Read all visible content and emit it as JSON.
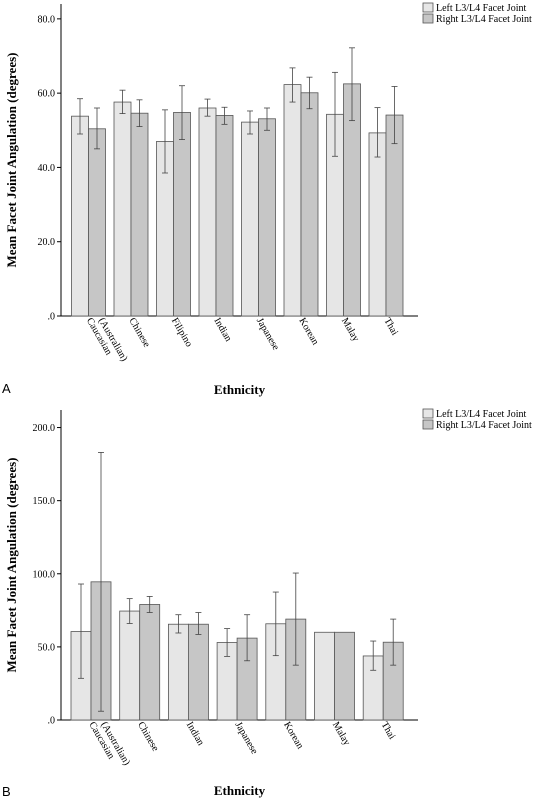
{
  "chart_data": [
    {
      "type": "bar",
      "panel_label": "A",
      "xlabel": "Ethnicity",
      "ylabel": "Mean Facet Joint Angulation (degrees)",
      "ylim": [
        0,
        84
      ],
      "yticks": [
        0,
        20,
        40,
        60,
        80
      ],
      "ytick_labels": [
        ".0",
        "20.0",
        "40.0",
        "60.0",
        "80.0"
      ],
      "grid": false,
      "legend_position": "top-right",
      "categories": [
        [
          "Caucasian",
          "(Australian)"
        ],
        [
          "Chinese"
        ],
        [
          "Filipino"
        ],
        [
          "Indian"
        ],
        [
          "Japanese"
        ],
        [
          "Korean"
        ],
        [
          "Malay"
        ],
        [
          "Thai"
        ]
      ],
      "series": [
        {
          "name": "Left L3/L4 Facet Joint",
          "color": "#e6e6e6",
          "values": [
            53.8,
            57.6,
            47.0,
            56.0,
            52.2,
            62.3,
            54.3,
            49.3
          ],
          "err_low": [
            49.0,
            54.5,
            38.5,
            53.8,
            49.0,
            57.6,
            43.0,
            42.8
          ],
          "err_high": [
            58.5,
            60.8,
            55.5,
            58.4,
            55.2,
            66.8,
            65.6,
            56.1
          ]
        },
        {
          "name": "Right L3/L4 Facet Joint",
          "color": "#c6c6c6",
          "values": [
            50.4,
            54.6,
            54.8,
            54.0,
            53.1,
            60.1,
            62.5,
            54.1
          ],
          "err_low": [
            45.0,
            51.0,
            47.5,
            51.6,
            50.0,
            55.8,
            52.6,
            46.4
          ],
          "err_high": [
            56.0,
            58.2,
            62.0,
            56.2,
            56.0,
            64.3,
            72.2,
            61.8
          ]
        }
      ]
    },
    {
      "type": "bar",
      "panel_label": "B",
      "xlabel": "Ethnicity",
      "ylabel": "Mean Facet Joint Angulation (degrees)",
      "ylim": [
        0,
        212
      ],
      "yticks": [
        0,
        50,
        100,
        150,
        200
      ],
      "ytick_labels": [
        ".0",
        "50.0",
        "100.0",
        "150.0",
        "200.0"
      ],
      "grid": false,
      "legend_position": "top-right",
      "categories": [
        [
          "Caucasian",
          "(Australian)"
        ],
        [
          "Chinese"
        ],
        [
          "Indian"
        ],
        [
          "Japanese"
        ],
        [
          "Korean"
        ],
        [
          "Malay"
        ],
        [
          "Thai"
        ]
      ],
      "series": [
        {
          "name": "Left L3/L4 Facet Joint",
          "color": "#e6e6e6",
          "values": [
            60.5,
            74.5,
            65.5,
            53.0,
            65.8,
            60.0,
            43.8
          ],
          "err_low": [
            28.5,
            66.0,
            59.5,
            43.5,
            44.0,
            null,
            34.0
          ],
          "err_high": [
            93.0,
            83.0,
            72.0,
            62.5,
            87.5,
            null,
            54.0
          ]
        },
        {
          "name": "Right L3/L4 Facet Joint",
          "color": "#c6c6c6",
          "values": [
            94.5,
            79.0,
            65.5,
            56.0,
            69.0,
            60.0,
            53.2
          ],
          "err_low": [
            6.0,
            73.5,
            58.5,
            40.5,
            37.5,
            null,
            37.5
          ],
          "err_high": [
            183.0,
            84.5,
            73.5,
            72.0,
            100.5,
            null,
            69.0
          ]
        }
      ]
    }
  ]
}
